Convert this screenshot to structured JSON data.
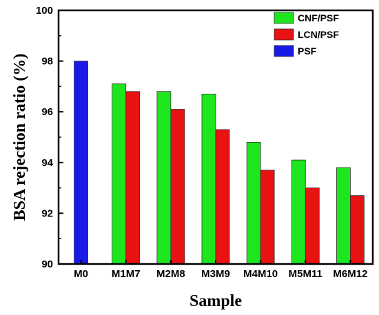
{
  "chart_data": {
    "type": "bar",
    "xlabel": "Sample",
    "ylabel": "BSA rejection ratio  (%)",
    "ylim": [
      90,
      100
    ],
    "yticks": [
      "90",
      "92",
      "94",
      "96",
      "98",
      "100"
    ],
    "grid": false,
    "legend_position": "top-right",
    "groups": [
      {
        "label": "M0",
        "bars": [
          {
            "series": "PSF",
            "value": 98.0
          }
        ]
      },
      {
        "label": "M1M7",
        "bars": [
          {
            "series": "CNF/PSF",
            "value": 97.1
          },
          {
            "series": "LCN/PSF",
            "value": 96.8
          }
        ]
      },
      {
        "label": "M2M8",
        "bars": [
          {
            "series": "CNF/PSF",
            "value": 96.8
          },
          {
            "series": "LCN/PSF",
            "value": 96.1
          }
        ]
      },
      {
        "label": "M3M9",
        "bars": [
          {
            "series": "CNF/PSF",
            "value": 96.7
          },
          {
            "series": "LCN/PSF",
            "value": 95.3
          }
        ]
      },
      {
        "label": "M4M10",
        "bars": [
          {
            "series": "CNF/PSF",
            "value": 94.8
          },
          {
            "series": "LCN/PSF",
            "value": 93.7
          }
        ]
      },
      {
        "label": "M5M11",
        "bars": [
          {
            "series": "CNF/PSF",
            "value": 94.1
          },
          {
            "series": "LCN/PSF",
            "value": 93.0
          }
        ]
      },
      {
        "label": "M6M12",
        "bars": [
          {
            "series": "CNF/PSF",
            "value": 93.8
          },
          {
            "series": "LCN/PSF",
            "value": 92.7
          }
        ]
      }
    ],
    "series": [
      {
        "name": "CNF/PSF",
        "color": "#1ee61e"
      },
      {
        "name": "LCN/PSF",
        "color": "#e81212"
      },
      {
        "name": "PSF",
        "color": "#1a1ae8"
      }
    ]
  }
}
